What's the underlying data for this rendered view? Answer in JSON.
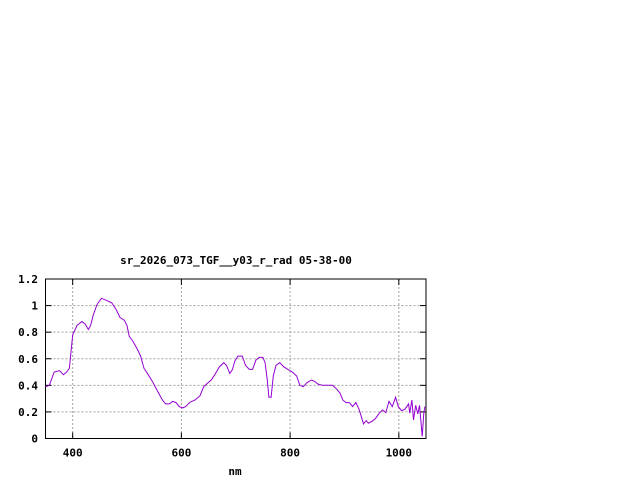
{
  "chart_data": {
    "type": "line",
    "title": "sr_2026_073_TGF__y03_r_rad 05-38-00",
    "xlabel": "nm",
    "ylabel": "",
    "xlim": [
      350,
      1050
    ],
    "ylim": [
      0,
      1.2
    ],
    "xticks": [
      400,
      600,
      800,
      1000
    ],
    "yticks": [
      0,
      0.2,
      0.4,
      0.6,
      0.8,
      1,
      1.2
    ],
    "ytick_labels": [
      "0",
      "0.2",
      "0.4",
      "0.6",
      "0.8",
      "1",
      "1.2"
    ],
    "grid": true,
    "legend": "none",
    "series": [
      {
        "color": "#9400d3",
        "x": [
          350,
          357,
          366,
          376,
          383,
          389,
          394,
          400,
          408,
          417,
          423,
          429,
          433,
          438,
          445,
          453,
          462,
          472,
          480,
          487,
          495,
          500,
          504,
          511,
          518,
          525,
          531,
          539,
          548,
          557,
          565,
          571,
          578,
          584,
          590,
          596,
          602,
          608,
          615,
          625,
          634,
          641,
          649,
          655,
          663,
          670,
          678,
          683,
          689,
          694,
          698,
          704,
          712,
          718,
          725,
          731,
          737,
          743,
          750,
          754,
          758,
          761,
          765,
          769,
          774,
          781,
          788,
          796,
          804,
          812,
          818,
          824,
          831,
          839,
          845,
          851,
          860,
          869,
          878,
          886,
          892,
          897,
          903,
          909,
          915,
          921,
          927,
          935,
          940,
          944,
          951,
          957,
          964,
          970,
          976,
          982,
          988,
          994,
          999,
          1005,
          1011,
          1018,
          1020,
          1024,
          1027,
          1031,
          1035,
          1038,
          1041,
          1043,
          1046,
          1048
        ],
        "y": [
          0.39,
          0.4,
          0.5,
          0.51,
          0.48,
          0.5,
          0.53,
          0.78,
          0.85,
          0.88,
          0.86,
          0.82,
          0.85,
          0.93,
          1.01,
          1.055,
          1.04,
          1.02,
          0.97,
          0.91,
          0.89,
          0.85,
          0.77,
          0.73,
          0.68,
          0.62,
          0.53,
          0.48,
          0.42,
          0.35,
          0.29,
          0.26,
          0.26,
          0.28,
          0.27,
          0.24,
          0.23,
          0.24,
          0.27,
          0.29,
          0.32,
          0.39,
          0.42,
          0.44,
          0.49,
          0.54,
          0.57,
          0.55,
          0.49,
          0.52,
          0.58,
          0.62,
          0.62,
          0.55,
          0.52,
          0.52,
          0.59,
          0.61,
          0.61,
          0.57,
          0.44,
          0.31,
          0.31,
          0.47,
          0.55,
          0.57,
          0.54,
          0.52,
          0.5,
          0.47,
          0.4,
          0.39,
          0.42,
          0.44,
          0.43,
          0.41,
          0.4,
          0.4,
          0.4,
          0.37,
          0.34,
          0.29,
          0.27,
          0.27,
          0.24,
          0.27,
          0.22,
          0.11,
          0.135,
          0.115,
          0.13,
          0.15,
          0.19,
          0.215,
          0.195,
          0.28,
          0.24,
          0.31,
          0.24,
          0.21,
          0.22,
          0.26,
          0.19,
          0.29,
          0.14,
          0.25,
          0.185,
          0.25,
          0.115,
          0.015,
          0.19,
          0.24
        ]
      }
    ]
  }
}
